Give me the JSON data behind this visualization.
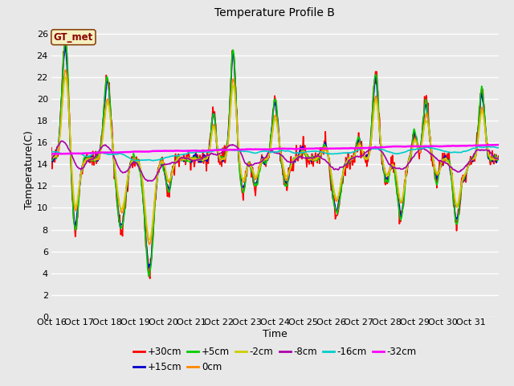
{
  "title": "Temperature Profile B",
  "xlabel": "Time",
  "ylabel": "Temperature(C)",
  "ylim": [
    0,
    27
  ],
  "yticks": [
    0,
    2,
    4,
    6,
    8,
    10,
    12,
    14,
    16,
    18,
    20,
    22,
    24,
    26
  ],
  "xtick_labels": [
    "Oct 16",
    "Oct 17",
    "Oct 18",
    "Oct 19",
    "Oct 20",
    "Oct 21",
    "Oct 22",
    "Oct 23",
    "Oct 24",
    "Oct 25",
    "Oct 26",
    "Oct 27",
    "Oct 28",
    "Oct 29",
    "Oct 30",
    "Oct 31"
  ],
  "annotation_text": "GT_met",
  "series_order": [
    "+30cm",
    "+15cm",
    "+5cm",
    "0cm",
    "-2cm",
    "-8cm",
    "-16cm",
    "-32cm"
  ],
  "series_colors": [
    "#ff0000",
    "#0000cc",
    "#00cc00",
    "#ff8800",
    "#cccc00",
    "#aa00aa",
    "#00cccc",
    "#ff00ff"
  ],
  "series_lws": [
    1.2,
    1.2,
    1.2,
    1.2,
    1.2,
    1.2,
    1.2,
    1.8
  ],
  "bg_color": "#e8e8e8",
  "font_size": 9
}
